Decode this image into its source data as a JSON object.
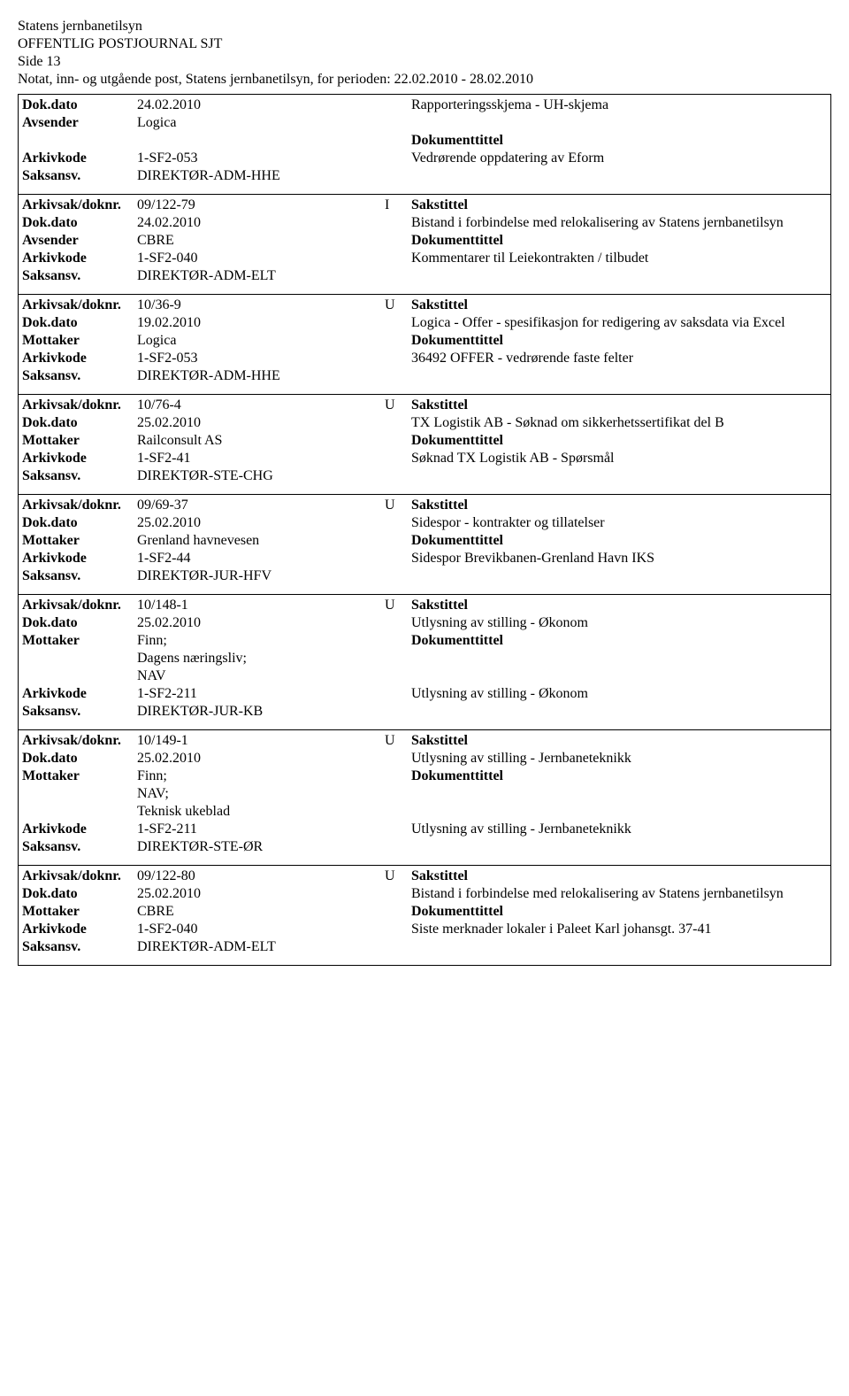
{
  "header": {
    "org": "Statens jernbanetilsyn",
    "journal": "OFFENTLIG POSTJOURNAL SJT",
    "side": "Side 13",
    "periode": "Notat, inn- og utgående post, Statens jernbanetilsyn, for perioden: 22.02.2010 - 28.02.2010"
  },
  "labels": {
    "dokdato": "Dok.dato",
    "avsender": "Avsender",
    "mottaker": "Mottaker",
    "arkivkode": "Arkivkode",
    "saksansv": "Saksansv.",
    "arkivsak": "Arkivsak/doknr.",
    "sakstittel": "Sakstittel",
    "dokumenttittel": "Dokumenttittel"
  },
  "topRecord": {
    "dokdato": "24.02.2010",
    "avsender": "Logica",
    "arkivkode": "1-SF2-053",
    "saksansv": "DIREKTØR-ADM-HHE",
    "right1": "Rapporteringsskjema - UH-skjema",
    "right2": "Vedrørende oppdatering av Eform"
  },
  "records": [
    {
      "arkivsak": "09/122-79",
      "io": "I",
      "dokdato": "24.02.2010",
      "partyLabel": "Avsender",
      "party": "CBRE",
      "arkivkode": "1-SF2-040",
      "saksansv": "DIREKTØR-ADM-ELT",
      "sakstittel": "Bistand i forbindelse med relokalisering av Statens jernbanetilsyn",
      "doktittel": "Kommentarer til Leiekontrakten / tilbudet"
    },
    {
      "arkivsak": "10/36-9",
      "io": "U",
      "dokdato": "19.02.2010",
      "partyLabel": "Mottaker",
      "party": "Logica",
      "arkivkode": "1-SF2-053",
      "saksansv": "DIREKTØR-ADM-HHE",
      "sakstittel": "Logica - Offer - spesifikasjon for redigering av saksdata via Excel",
      "doktittel": "36492 OFFER - vedrørende faste felter"
    },
    {
      "arkivsak": "10/76-4",
      "io": "U",
      "dokdato": "25.02.2010",
      "partyLabel": "Mottaker",
      "party": "Railconsult AS",
      "arkivkode": "1-SF2-41",
      "saksansv": "DIREKTØR-STE-CHG",
      "sakstittel": "TX Logistik AB - Søknad om sikkerhetssertifikat del B",
      "doktittel": "Søknad TX Logistik AB - Spørsmål"
    },
    {
      "arkivsak": "09/69-37",
      "io": "U",
      "dokdato": "25.02.2010",
      "partyLabel": "Mottaker",
      "party": "Grenland havnevesen",
      "arkivkode": "1-SF2-44",
      "saksansv": "DIREKTØR-JUR-HFV",
      "sakstittel": "Sidespor - kontrakter og tillatelser",
      "doktittel": "Sidespor Brevikbanen-Grenland Havn IKS"
    },
    {
      "arkivsak": "10/148-1",
      "io": "U",
      "dokdato": "25.02.2010",
      "partyLabel": "Mottaker",
      "party": "Finn;\nDagens næringsliv;\nNAV",
      "arkivkode": "1-SF2-211",
      "saksansv": "DIREKTØR-JUR-KB",
      "sakstittel": "Utlysning av stilling - Økonom",
      "doktittel": "Utlysning av stilling - Økonom"
    },
    {
      "arkivsak": "10/149-1",
      "io": "U",
      "dokdato": "25.02.2010",
      "partyLabel": "Mottaker",
      "party": "Finn;\nNAV;\nTeknisk ukeblad",
      "arkivkode": "1-SF2-211",
      "saksansv": "DIREKTØR-STE-ØR",
      "sakstittel": "Utlysning av stilling - Jernbaneteknikk",
      "doktittel": "Utlysning av stilling - Jernbaneteknikk"
    },
    {
      "arkivsak": "09/122-80",
      "io": "U",
      "dokdato": "25.02.2010",
      "partyLabel": "Mottaker",
      "party": "CBRE",
      "arkivkode": "1-SF2-040",
      "saksansv": "DIREKTØR-ADM-ELT",
      "sakstittel": "Bistand i forbindelse med relokalisering av Statens jernbanetilsyn",
      "doktittel": "Siste merknader lokaler i Paleet Karl johansgt. 37-41"
    }
  ]
}
